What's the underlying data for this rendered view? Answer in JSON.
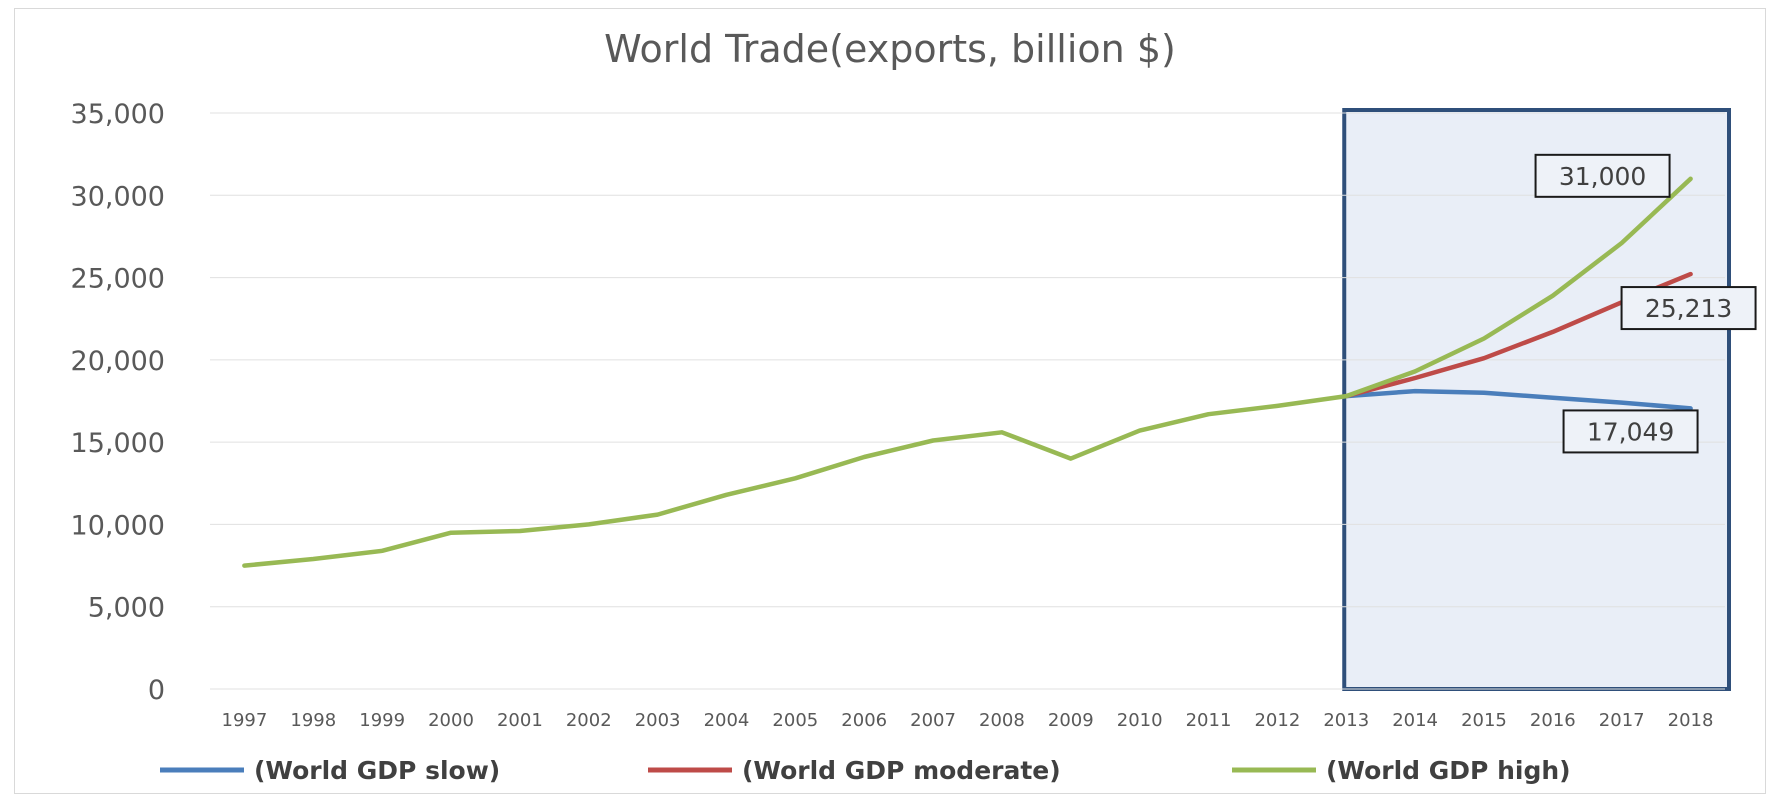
{
  "chart_data": {
    "type": "line",
    "title": "World Trade(exports, billion $)",
    "xlabel": "",
    "ylabel": "",
    "ylim": [
      0,
      35000
    ],
    "yticks": [
      0,
      5000,
      10000,
      15000,
      20000,
      25000,
      30000,
      35000
    ],
    "ytick_labels": [
      "0",
      "5,000",
      "10,000",
      "15,000",
      "20,000",
      "25,000",
      "30,000",
      "35,000"
    ],
    "grid": true,
    "legend_position": "bottom",
    "x": [
      1997,
      1998,
      1999,
      2000,
      2001,
      2002,
      2003,
      2004,
      2005,
      2006,
      2007,
      2008,
      2009,
      2010,
      2011,
      2012,
      2013,
      2014,
      2015,
      2016,
      2017,
      2018
    ],
    "x_labels": [
      "1997",
      "1998",
      "1999",
      "2000",
      "2001",
      "2002",
      "2003",
      "2004",
      "2005",
      "2006",
      "2007",
      "2008",
      "2009",
      "2010",
      "2011",
      "2012",
      "2013",
      "2014",
      "2015",
      "2016",
      "2017",
      "2018"
    ],
    "series": [
      {
        "name": "(World GDP slow)",
        "color": "#4a7ebb",
        "values": [
          null,
          null,
          null,
          null,
          null,
          null,
          null,
          null,
          null,
          null,
          null,
          null,
          null,
          null,
          null,
          null,
          17800,
          18100,
          18000,
          17700,
          17400,
          17049
        ]
      },
      {
        "name": "(World GDP moderate)",
        "color": "#be4b48",
        "values": [
          null,
          null,
          null,
          null,
          null,
          null,
          null,
          null,
          null,
          null,
          null,
          null,
          null,
          null,
          null,
          null,
          17800,
          18900,
          20100,
          21700,
          23500,
          25213
        ]
      },
      {
        "name": "(World GDP high)",
        "color": "#98b954",
        "values": [
          7500,
          7900,
          8400,
          9500,
          9600,
          10000,
          10600,
          11800,
          12800,
          14100,
          15100,
          15600,
          14000,
          15700,
          16700,
          17200,
          17800,
          19300,
          21300,
          23900,
          27100,
          31000
        ]
      }
    ],
    "highlight_region": {
      "x_start": 2013,
      "x_end": 2018,
      "fill": "#e9eef7",
      "border": "#2f4f7a"
    },
    "annotations": [
      {
        "text": "31,000",
        "series": "(World GDP high)",
        "x": 2018,
        "value": 31000
      },
      {
        "text": "25,213",
        "series": "(World GDP moderate)",
        "x": 2018,
        "value": 25213
      },
      {
        "text": "17,049",
        "series": "(World GDP slow)",
        "x": 2018,
        "value": 17049
      }
    ],
    "gridline_color": "#e0e0e0"
  }
}
